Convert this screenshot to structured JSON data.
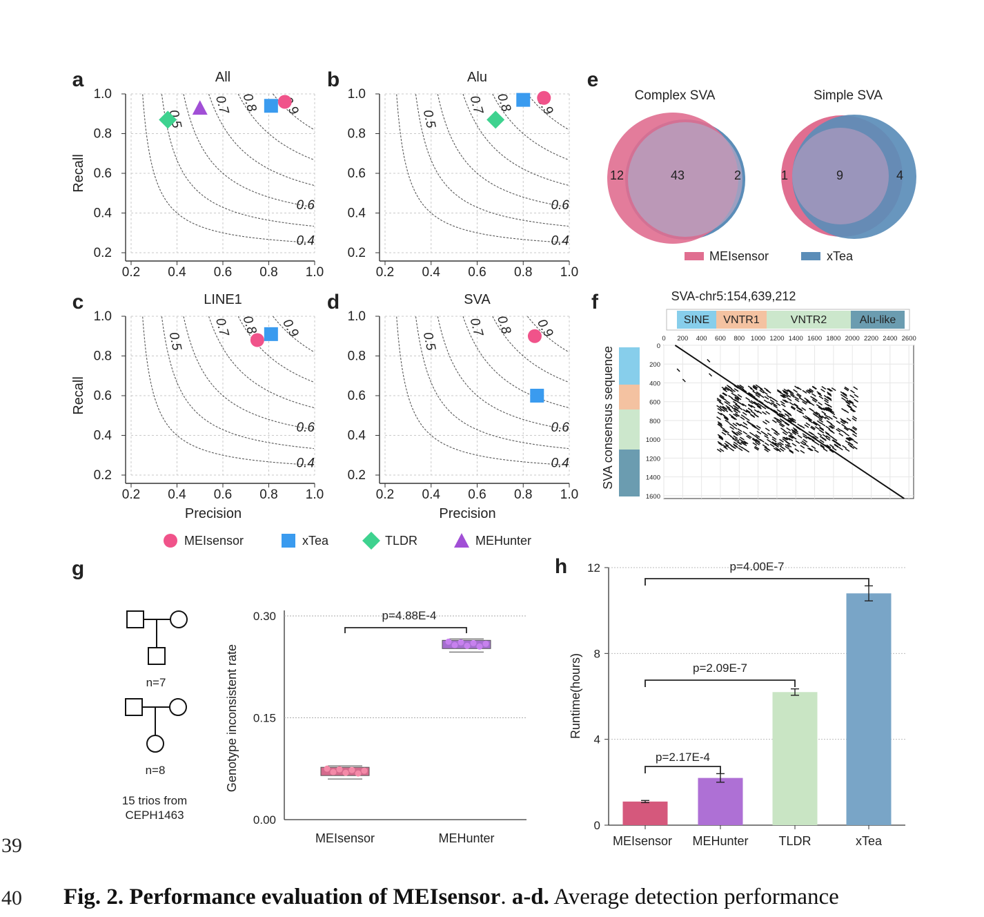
{
  "panels": {
    "a": {
      "letter": "a",
      "title": "All"
    },
    "b": {
      "letter": "b",
      "title": "Alu"
    },
    "c": {
      "letter": "c",
      "title": "LINE1"
    },
    "d": {
      "letter": "d",
      "title": "SVA"
    },
    "e": {
      "letter": "e",
      "left_title": "Complex SVA",
      "right_title": "Simple SVA"
    },
    "f": {
      "letter": "f",
      "title": "SVA-chr5:154,639,212",
      "ylabel": "SVA  consensus sequence"
    },
    "g": {
      "letter": "g",
      "ylabel": "Genotype inconsistent rate",
      "pvalue": "p=4.88E-4"
    },
    "h": {
      "letter": "h",
      "ylabel": "Runtime(hours)"
    }
  },
  "pr_axes": {
    "xlabel": "Precision",
    "ylabel": "Recall",
    "xticks": [
      "0.2",
      "0.4",
      "0.6",
      "0.8",
      "1.0"
    ],
    "yticks": [
      "0.2",
      "0.4",
      "0.6",
      "0.8",
      "1.0"
    ],
    "f1_labels": [
      "0.4",
      "0.6",
      "0.5",
      "0.7",
      "0.8",
      "0.9"
    ]
  },
  "legend_pr": [
    {
      "name": "MEIsensor",
      "color": "#f0538a",
      "shape": "circle"
    },
    {
      "name": "xTea",
      "color": "#3a9bef",
      "shape": "square"
    },
    {
      "name": "TLDR",
      "color": "#3ed28f",
      "shape": "diamond"
    },
    {
      "name": "MEHunter",
      "color": "#a14fd6",
      "shape": "triangle"
    }
  ],
  "legend_venn": [
    {
      "name": "MEIsensor",
      "color": "#e06e90"
    },
    {
      "name": "xTea",
      "color": "#5b8db8"
    }
  ],
  "pedigree": {
    "n1": "n=7",
    "n2": "n=8",
    "note1": "15 trios from",
    "note2": "CEPH1463"
  },
  "line_numbers": [
    "39",
    "40"
  ],
  "caption": {
    "bold": "Fig. 2. Performance evaluation of MEIsensor",
    "sep": ". ",
    "bold2": "a-d.",
    "rest": " Average detection performance"
  },
  "chart_data": [
    {
      "panel": "a",
      "type": "scatter",
      "title": "All",
      "xlabel": "",
      "ylabel": "Recall",
      "xlim": [
        0.2,
        1.0
      ],
      "ylim": [
        0.2,
        1.0
      ],
      "f1_contours": [
        0.4,
        0.5,
        0.6,
        0.7,
        0.8,
        0.9
      ],
      "series": [
        {
          "name": "MEIsensor",
          "x": [
            0.87
          ],
          "y": [
            0.96
          ]
        },
        {
          "name": "xTea",
          "x": [
            0.81
          ],
          "y": [
            0.94
          ]
        },
        {
          "name": "TLDR",
          "x": [
            0.36
          ],
          "y": [
            0.87
          ]
        },
        {
          "name": "MEHunter",
          "x": [
            0.5
          ],
          "y": [
            0.93
          ]
        }
      ]
    },
    {
      "panel": "b",
      "type": "scatter",
      "title": "Alu",
      "xlabel": "",
      "ylabel": "",
      "xlim": [
        0.2,
        1.0
      ],
      "ylim": [
        0.2,
        1.0
      ],
      "f1_contours": [
        0.4,
        0.5,
        0.6,
        0.7,
        0.8,
        0.9
      ],
      "series": [
        {
          "name": "MEIsensor",
          "x": [
            0.89
          ],
          "y": [
            0.98
          ]
        },
        {
          "name": "xTea",
          "x": [
            0.8
          ],
          "y": [
            0.97
          ]
        },
        {
          "name": "TLDR",
          "x": [
            0.68
          ],
          "y": [
            0.87
          ]
        }
      ]
    },
    {
      "panel": "c",
      "type": "scatter",
      "title": "LINE1",
      "xlabel": "Precision",
      "ylabel": "Recall",
      "xlim": [
        0.2,
        1.0
      ],
      "ylim": [
        0.2,
        1.0
      ],
      "f1_contours": [
        0.4,
        0.5,
        0.6,
        0.7,
        0.8,
        0.9
      ],
      "series": [
        {
          "name": "MEIsensor",
          "x": [
            0.75
          ],
          "y": [
            0.88
          ]
        },
        {
          "name": "xTea",
          "x": [
            0.81
          ],
          "y": [
            0.91
          ]
        }
      ]
    },
    {
      "panel": "d",
      "type": "scatter",
      "title": "SVA",
      "xlabel": "Precision",
      "ylabel": "",
      "xlim": [
        0.2,
        1.0
      ],
      "ylim": [
        0.2,
        1.0
      ],
      "f1_contours": [
        0.4,
        0.5,
        0.6,
        0.7,
        0.8,
        0.9
      ],
      "series": [
        {
          "name": "MEIsensor",
          "x": [
            0.85
          ],
          "y": [
            0.9
          ]
        },
        {
          "name": "xTea",
          "x": [
            0.86
          ],
          "y": [
            0.6
          ]
        }
      ]
    },
    {
      "panel": "e",
      "type": "venn",
      "sets": [
        {
          "title": "Complex SVA",
          "only_MEIsensor": 12,
          "both": 43,
          "only_xTea": 2
        },
        {
          "title": "Simple SVA",
          "only_MEIsensor": 1,
          "both": 9,
          "only_xTea": 4
        }
      ]
    },
    {
      "panel": "f",
      "type": "dotplot",
      "title": "SVA-chr5:154,639,212",
      "segments": [
        {
          "name": "SINE",
          "color": "#87ceeb"
        },
        {
          "name": "VNTR1",
          "color": "#f4c2a1"
        },
        {
          "name": "VNTR2",
          "color": "#cce7cc"
        },
        {
          "name": "Alu-like",
          "color": "#6b9cb0"
        }
      ],
      "xticks": [
        "0",
        "200",
        "400",
        "600",
        "800",
        "1000",
        "1200",
        "1400",
        "1600",
        "1800",
        "2000",
        "2200",
        "2400",
        "2600"
      ],
      "yticks": [
        "0",
        "200",
        "400",
        "600",
        "800",
        "1000",
        "1200",
        "1400",
        "1600"
      ]
    },
    {
      "panel": "g",
      "type": "box",
      "ylabel": "Genotype inconsistent rate",
      "categories": [
        "MEIsensor",
        "MEHunter"
      ],
      "ylim": [
        0,
        0.3
      ],
      "yticks": [
        "0.00",
        "0.15",
        "0.30"
      ],
      "medians": [
        0.071,
        0.258
      ],
      "pvalue": "p=4.88E-4"
    },
    {
      "panel": "h",
      "type": "bar",
      "ylabel": "Runtime(hours)",
      "categories": [
        "MEIsensor",
        "MEHunter",
        "TLDR",
        "xTea"
      ],
      "values": [
        1.1,
        2.2,
        6.2,
        10.8
      ],
      "errors": [
        0.05,
        0.2,
        0.15,
        0.35
      ],
      "ylim": [
        0,
        12
      ],
      "yticks": [
        "0",
        "4",
        "8",
        "12"
      ],
      "colors": [
        "#d5587c",
        "#ae70d5",
        "#c9e5c4",
        "#79a5c7"
      ],
      "pvalues": [
        {
          "label": "p=2.17E-4",
          "pair": [
            0,
            1
          ]
        },
        {
          "label": "p=2.09E-7",
          "pair": [
            0,
            2
          ]
        },
        {
          "label": "p=4.00E-7",
          "pair": [
            0,
            3
          ]
        }
      ]
    }
  ]
}
